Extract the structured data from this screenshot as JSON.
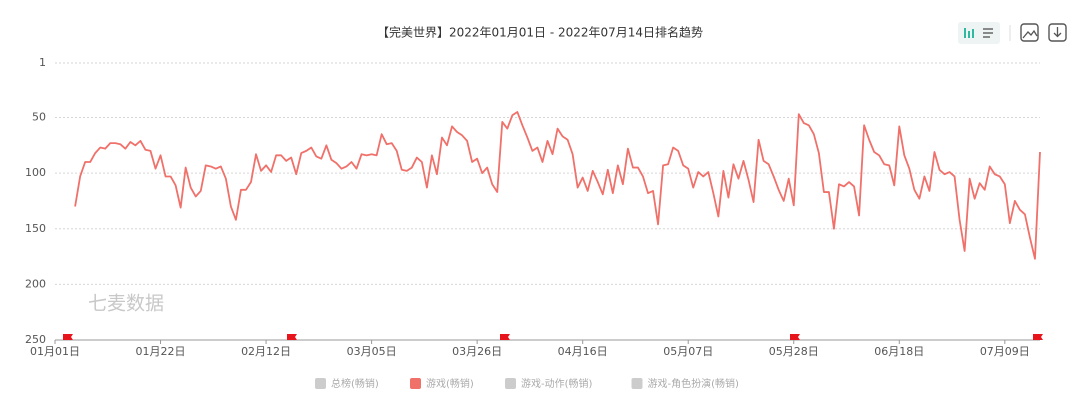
{
  "chart_data": {
    "type": "line",
    "title": "【完美世界】2022年01月01日 - 2022年07月14日排名趋势",
    "watermark": "七麦数据",
    "y_inverted": true,
    "grid": true,
    "ylim": [
      1,
      250
    ],
    "yticks": [
      1,
      50,
      100,
      150,
      200,
      250
    ],
    "categories": [
      "01月01日",
      null,
      null,
      null,
      null,
      null,
      null,
      null,
      null,
      null,
      null,
      null,
      null,
      null,
      null,
      null,
      null,
      null,
      null,
      null,
      null,
      "01月22日",
      null,
      null,
      null,
      null,
      null,
      null,
      null,
      null,
      null,
      null,
      null,
      null,
      null,
      null,
      null,
      null,
      null,
      null,
      null,
      null,
      "02月12日",
      null,
      null,
      null,
      null,
      null,
      null,
      null,
      null,
      null,
      null,
      null,
      null,
      null,
      null,
      null,
      null,
      null,
      null,
      null,
      null,
      "03月05日",
      null,
      null,
      null,
      null,
      null,
      null,
      null,
      null,
      null,
      null,
      null,
      null,
      null,
      null,
      null,
      null,
      null,
      null,
      null,
      null,
      "03月26日",
      null,
      null,
      null,
      null,
      null,
      null,
      null,
      null,
      null,
      null,
      null,
      null,
      null,
      null,
      null,
      null,
      null,
      null,
      null,
      null,
      "04月16日",
      null,
      null,
      null,
      null,
      null,
      null,
      null,
      null,
      null,
      null,
      null,
      null,
      null,
      null,
      null,
      null,
      null,
      null,
      null,
      null,
      "05月07日",
      null,
      null,
      null,
      null,
      null,
      null,
      null,
      null,
      null,
      null,
      null,
      null,
      null,
      null,
      null,
      null,
      null,
      null,
      null,
      null,
      "05月28日",
      null,
      null,
      null,
      null,
      null,
      null,
      null,
      null,
      null,
      null,
      null,
      null,
      null,
      null,
      null,
      null,
      null,
      null,
      null,
      null,
      "06月18日",
      null,
      null,
      null,
      null,
      null,
      null,
      null,
      null,
      null,
      null,
      null,
      null,
      null,
      null,
      null,
      null,
      null,
      null,
      null,
      null,
      "07月09日",
      null,
      null,
      null,
      null,
      null,
      null,
      null
    ],
    "series": [
      {
        "color": "#f0706a",
        "values": [
          null,
          null,
          null,
          null,
          130,
          103,
          90,
          90,
          82,
          77,
          78,
          73,
          73,
          74,
          78,
          72,
          75,
          71,
          79,
          80,
          96,
          84,
          103,
          103,
          111,
          131,
          95,
          113,
          121,
          116,
          93,
          94,
          96,
          94,
          105,
          130,
          142,
          115,
          115,
          108,
          83,
          98,
          93,
          99,
          84,
          84,
          89,
          86,
          101,
          82,
          80,
          77,
          85,
          87,
          75,
          88,
          91,
          96,
          94,
          90,
          96,
          83,
          84,
          83,
          84,
          65,
          74,
          73,
          80,
          97,
          98,
          95,
          86,
          90,
          113,
          84,
          101,
          68,
          75,
          58,
          63,
          66,
          71,
          90,
          87,
          100,
          95,
          110,
          117,
          54,
          60,
          48,
          45,
          57,
          68,
          80,
          77,
          90,
          71,
          83,
          60,
          67,
          70,
          83,
          113,
          104,
          116,
          98,
          108,
          119,
          97,
          118,
          93,
          110,
          78,
          95,
          95,
          103,
          118,
          116,
          146,
          93,
          92,
          77,
          80,
          93,
          96,
          113,
          99,
          103,
          99,
          118,
          139,
          98,
          122,
          92,
          105,
          89,
          106,
          126,
          70,
          89,
          92,
          103,
          115,
          125,
          105,
          129,
          47,
          55,
          57,
          65,
          82,
          117,
          117,
          150,
          110,
          112,
          108,
          112,
          138,
          57,
          70,
          81,
          84,
          92,
          93,
          111,
          58,
          84,
          96,
          115,
          123,
          103,
          116,
          81,
          97,
          101,
          99,
          103,
          142,
          170,
          105,
          123,
          109,
          115,
          94,
          101,
          103,
          110,
          145,
          125,
          133,
          137,
          158,
          177,
          81
        ]
      }
    ],
    "legend": [
      {
        "name": "总榜(畅销)",
        "color": "#cccccc"
      },
      {
        "name": "游戏(畅销)",
        "color": "#f0706a"
      },
      {
        "name": "游戏-动作(畅销)",
        "color": "#cccccc"
      },
      {
        "name": "游戏-角色扮演(畅销)",
        "color": "#cccccc"
      }
    ]
  }
}
